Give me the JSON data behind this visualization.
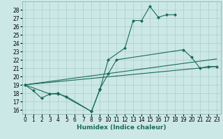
{
  "title": "",
  "xlabel": "Humidex (Indice chaleur)",
  "ylabel": "",
  "bg_color": "#cce8e6",
  "grid_color": "#aaccca",
  "line_color": "#1a6b5a",
  "x_values": [
    0,
    1,
    2,
    3,
    4,
    5,
    6,
    7,
    8,
    9,
    10,
    11,
    12,
    13,
    14,
    15,
    16,
    17,
    18,
    19,
    20,
    21,
    22,
    23
  ],
  "series1_x": [
    0,
    1,
    2,
    3,
    4,
    5,
    8,
    9,
    10,
    12,
    13,
    14,
    15,
    16,
    17,
    18
  ],
  "series1_y": [
    19.0,
    18.3,
    17.4,
    17.9,
    17.9,
    17.6,
    15.8,
    18.4,
    22.0,
    23.4,
    26.7,
    26.7,
    28.4,
    27.1,
    27.4,
    27.4
  ],
  "series2_x": [
    0,
    3,
    4,
    8,
    9,
    10,
    11,
    19,
    20,
    21,
    22,
    23
  ],
  "series2_y": [
    19.0,
    17.9,
    18.0,
    15.8,
    18.5,
    20.3,
    22.0,
    23.2,
    22.3,
    21.0,
    21.2,
    21.2
  ],
  "line3_x": [
    0,
    23
  ],
  "line3_y": [
    19.0,
    22.1
  ],
  "line4_x": [
    0,
    23
  ],
  "line4_y": [
    19.0,
    21.2
  ],
  "ylim_min": 15.5,
  "ylim_max": 29.0,
  "yticks": [
    16,
    17,
    18,
    19,
    20,
    21,
    22,
    23,
    24,
    25,
    26,
    27,
    28
  ],
  "xlim_min": -0.3,
  "xlim_max": 23.5,
  "xticks": [
    0,
    1,
    2,
    3,
    4,
    5,
    6,
    7,
    8,
    9,
    10,
    11,
    12,
    13,
    14,
    15,
    16,
    17,
    18,
    19,
    20,
    21,
    22,
    23
  ],
  "tick_fontsize": 5.5,
  "xlabel_fontsize": 6.5,
  "marker": "D",
  "markersize": 2.0,
  "linewidth": 0.8
}
